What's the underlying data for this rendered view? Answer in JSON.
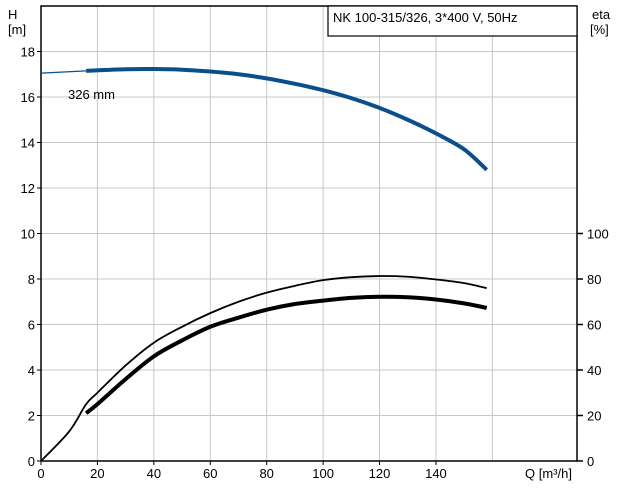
{
  "chart_data": {
    "type": "line",
    "title": "NK 100-315/326, 3*400 V, 50Hz",
    "left_axis": {
      "label_line1": "H",
      "label_line2": "[m]",
      "range": [
        0,
        20
      ],
      "ticks": [
        0,
        2,
        4,
        6,
        8,
        10,
        12,
        14,
        16,
        18
      ]
    },
    "right_axis": {
      "label_line1": "eta",
      "label_line2": "[%]",
      "range": [
        0,
        200
      ],
      "ticks": [
        0,
        20,
        40,
        60,
        80,
        100
      ]
    },
    "x_axis": {
      "label": "Q [m³/h]",
      "range": [
        0,
        190
      ],
      "ticks": [
        0,
        20,
        40,
        60,
        80,
        100,
        120,
        140
      ]
    },
    "grid": true,
    "annotation": "326 mm",
    "series": [
      {
        "kind": "head",
        "axis": "left",
        "color": "#0a4f8c",
        "x": [
          0,
          16,
          30,
          40,
          50,
          60,
          70,
          80,
          90,
          100,
          110,
          120,
          130,
          140,
          150,
          158
        ],
        "values": [
          17.05,
          17.15,
          17.22,
          17.23,
          17.2,
          17.12,
          17.0,
          16.82,
          16.58,
          16.3,
          15.95,
          15.52,
          15.0,
          14.4,
          13.7,
          12.8
        ]
      },
      {
        "kind": "efficiency-thin",
        "axis": "right",
        "color": "#000000",
        "x": [
          0,
          10,
          16,
          20,
          30,
          40,
          50,
          60,
          70,
          80,
          90,
          100,
          110,
          120,
          130,
          140,
          150,
          158
        ],
        "values": [
          0,
          13,
          25,
          30,
          42,
          52,
          59,
          65,
          70,
          74,
          77,
          79.5,
          80.8,
          81.3,
          81.0,
          79.8,
          78.2,
          76
        ]
      },
      {
        "kind": "efficiency-bold",
        "axis": "right",
        "color": "#000000",
        "x": [
          16,
          20,
          30,
          40,
          50,
          60,
          70,
          80,
          90,
          100,
          110,
          120,
          130,
          140,
          150,
          158
        ],
        "values": [
          21,
          25,
          36,
          46,
          53,
          59,
          63,
          66.5,
          69,
          70.5,
          71.7,
          72.2,
          72.0,
          71.0,
          69.3,
          67.3
        ]
      }
    ]
  },
  "colors": {
    "head": "#0a4f8c",
    "grid": "#c8c8c8",
    "frame": "#000000"
  }
}
